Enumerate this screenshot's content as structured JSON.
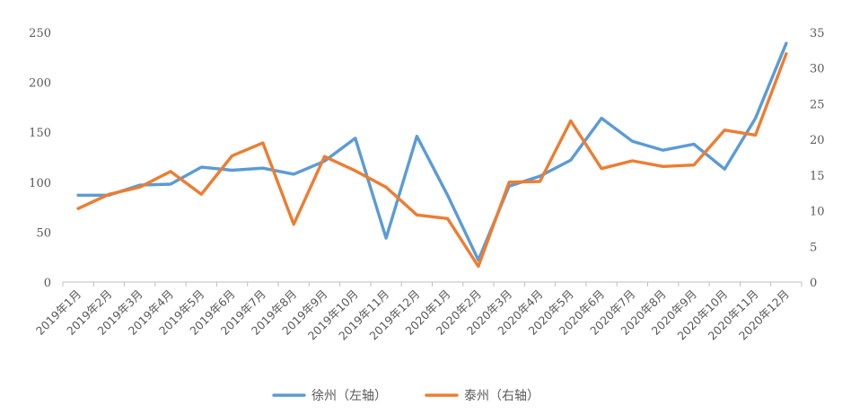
{
  "chart_data": {
    "type": "line",
    "title": "",
    "categories": [
      "2019年1月",
      "2019年2月",
      "2019年3月",
      "2019年4月",
      "2019年5月",
      "2019年6月",
      "2019年7月",
      "2019年8月",
      "2019年9月",
      "2019年10月",
      "2019年11月",
      "2019年12月",
      "2020年1月",
      "2020年2月",
      "2020年3月",
      "2020年4月",
      "2020年5月",
      "2020年6月",
      "2020年7月",
      "2020年8月",
      "2020年9月",
      "2020年10月",
      "2020年11月",
      "2020年12月"
    ],
    "series": [
      {
        "name": "徐州（左轴）",
        "axis": "left",
        "color": "#5B9BD5",
        "values": [
          87,
          87,
          97,
          98,
          115,
          112,
          114,
          108,
          121,
          144,
          44,
          146,
          87,
          22,
          96,
          106,
          122,
          164,
          141,
          132,
          138,
          113,
          164,
          239
        ]
      },
      {
        "name": "泰州（右轴）",
        "axis": "right",
        "color": "#ED7D31",
        "values": [
          10.3,
          12.3,
          13.3,
          15.5,
          12.3,
          17.7,
          19.5,
          8.1,
          17.6,
          15.6,
          13.3,
          9.4,
          8.9,
          2.2,
          14.0,
          14.1,
          22.6,
          15.9,
          17.0,
          16.2,
          16.4,
          21.3,
          20.6,
          32.0
        ]
      }
    ],
    "y_left": {
      "min": 0,
      "max": 250,
      "ticks": [
        "0",
        "50",
        "100",
        "150",
        "200",
        "250"
      ]
    },
    "y_right": {
      "min": 0,
      "max": 35,
      "ticks": [
        "0",
        "5",
        "10",
        "15",
        "20",
        "25",
        "30",
        "35"
      ]
    },
    "grid": false,
    "legend_position": "bottom"
  }
}
